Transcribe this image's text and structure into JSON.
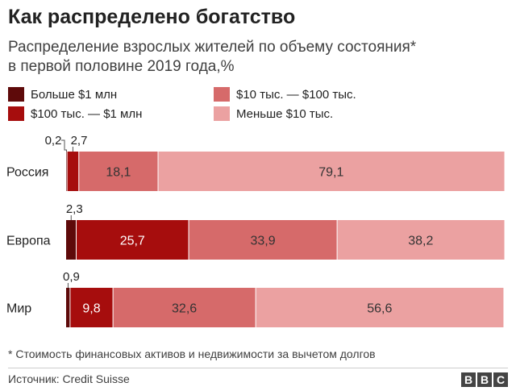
{
  "title": "Как распределено богатство",
  "subtitle_line1": "Распределение взрослых жителей по объему состояния*",
  "subtitle_line2": "в первой половине 2019 года,%",
  "footnote": "* Стоимость финансовых активов и недвижимости за вычетом долгов",
  "source": "Источник: Credit Suisse",
  "logo": [
    "B",
    "B",
    "C"
  ],
  "colors": [
    "#5e0a0a",
    "#a60d0d",
    "#d66a6a",
    "#eba1a1"
  ],
  "chart_data": {
    "type": "bar",
    "orientation": "horizontal",
    "stacked": true,
    "categories": [
      "Россия",
      "Европа",
      "Мир"
    ],
    "series": [
      {
        "name": "Больше $1 млн",
        "values": [
          0.2,
          2.3,
          0.9
        ],
        "labels": [
          "0,2",
          "2,3",
          "0,9"
        ]
      },
      {
        "name": "$100 тыс. — $1 млн",
        "values": [
          2.7,
          25.7,
          9.8
        ],
        "labels": [
          "2,7",
          "25,7",
          "9,8"
        ]
      },
      {
        "name": "$10 тыс. — $100 тыс.",
        "values": [
          18.1,
          33.9,
          32.6
        ],
        "labels": [
          "18,1",
          "33,9",
          "32,6"
        ]
      },
      {
        "name": "Меньше $10 тыс.",
        "values": [
          79.1,
          38.2,
          56.6
        ],
        "labels": [
          "79,1",
          "38,2",
          "56,6"
        ]
      }
    ],
    "xlim": [
      0,
      100
    ],
    "unit": "%",
    "legend": "top"
  }
}
